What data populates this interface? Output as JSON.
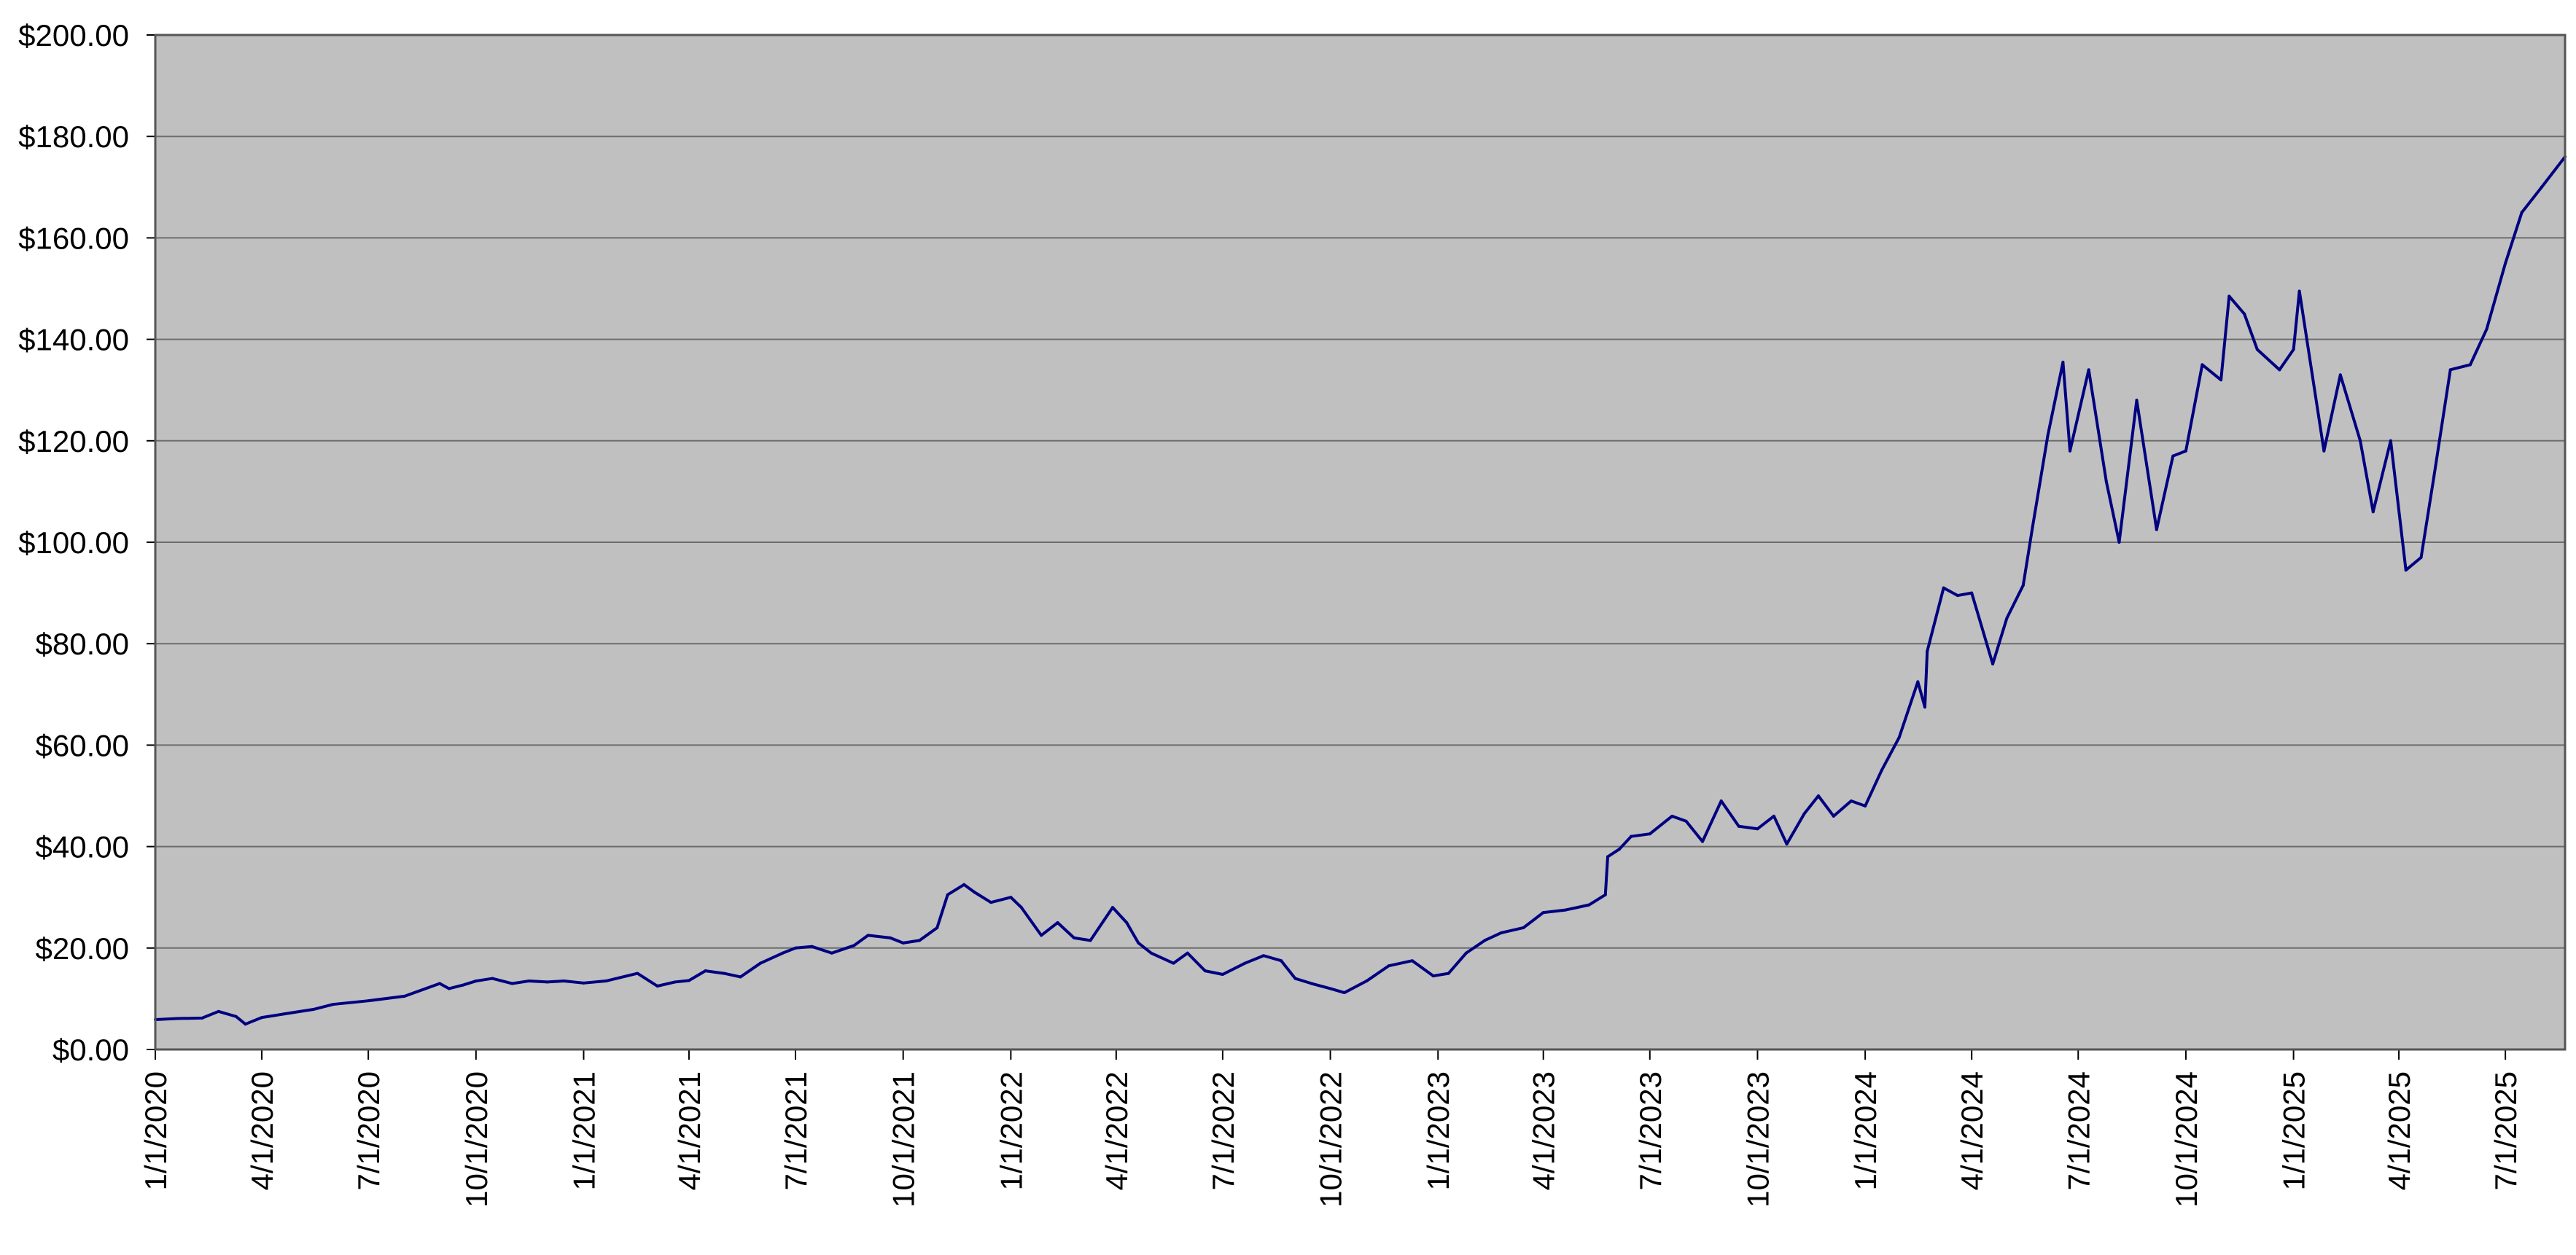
{
  "chart_data": {
    "type": "line",
    "title": "",
    "xlabel": "",
    "ylabel": "",
    "ylim": [
      0,
      200
    ],
    "xlim": [
      "2020-01-01",
      "2025-08-21"
    ],
    "grid": true,
    "legend": "none",
    "y_ticks": [
      {
        "value": 0,
        "label": "$0.00"
      },
      {
        "value": 20,
        "label": "$20.00"
      },
      {
        "value": 40,
        "label": "$40.00"
      },
      {
        "value": 60,
        "label": "$60.00"
      },
      {
        "value": 80,
        "label": "$80.00"
      },
      {
        "value": 100,
        "label": "$100.00"
      },
      {
        "value": 120,
        "label": "$120.00"
      },
      {
        "value": 140,
        "label": "$140.00"
      },
      {
        "value": 160,
        "label": "$160.00"
      },
      {
        "value": 180,
        "label": "$180.00"
      },
      {
        "value": 200,
        "label": "$200.00"
      }
    ],
    "x_ticks": [
      {
        "date": "2020-01-01",
        "label": "1/1/2020"
      },
      {
        "date": "2020-04-01",
        "label": "4/1/2020"
      },
      {
        "date": "2020-07-01",
        "label": "7/1/2020"
      },
      {
        "date": "2020-10-01",
        "label": "10/1/2020"
      },
      {
        "date": "2021-01-01",
        "label": "1/1/2021"
      },
      {
        "date": "2021-04-01",
        "label": "4/1/2021"
      },
      {
        "date": "2021-07-01",
        "label": "7/1/2021"
      },
      {
        "date": "2021-10-01",
        "label": "10/1/2021"
      },
      {
        "date": "2022-01-01",
        "label": "1/1/2022"
      },
      {
        "date": "2022-04-01",
        "label": "4/1/2022"
      },
      {
        "date": "2022-07-01",
        "label": "7/1/2022"
      },
      {
        "date": "2022-10-01",
        "label": "10/1/2022"
      },
      {
        "date": "2023-01-01",
        "label": "1/1/2023"
      },
      {
        "date": "2023-04-01",
        "label": "4/1/2023"
      },
      {
        "date": "2023-07-01",
        "label": "7/1/2023"
      },
      {
        "date": "2023-10-01",
        "label": "10/1/2023"
      },
      {
        "date": "2024-01-01",
        "label": "1/1/2024"
      },
      {
        "date": "2024-04-01",
        "label": "4/1/2024"
      },
      {
        "date": "2024-07-01",
        "label": "7/1/2024"
      },
      {
        "date": "2024-10-01",
        "label": "10/1/2024"
      },
      {
        "date": "2025-01-01",
        "label": "1/1/2025"
      },
      {
        "date": "2025-04-01",
        "label": "4/1/2025"
      },
      {
        "date": "2025-07-01",
        "label": "7/1/2025"
      }
    ],
    "series": [
      {
        "color": "#000080",
        "points": [
          [
            "2020-01-01",
            5.9
          ],
          [
            "2020-01-20",
            6.1
          ],
          [
            "2020-02-10",
            6.2
          ],
          [
            "2020-02-24",
            7.5
          ],
          [
            "2020-03-10",
            6.5
          ],
          [
            "2020-03-18",
            5.0
          ],
          [
            "2020-04-01",
            6.3
          ],
          [
            "2020-04-20",
            7.0
          ],
          [
            "2020-05-15",
            7.9
          ],
          [
            "2020-06-01",
            8.9
          ],
          [
            "2020-07-01",
            9.6
          ],
          [
            "2020-08-01",
            10.5
          ],
          [
            "2020-08-31",
            13.0
          ],
          [
            "2020-09-08",
            12.0
          ],
          [
            "2020-09-20",
            12.7
          ],
          [
            "2020-10-01",
            13.5
          ],
          [
            "2020-10-15",
            14.0
          ],
          [
            "2020-11-01",
            13.0
          ],
          [
            "2020-11-15",
            13.5
          ],
          [
            "2020-12-01",
            13.3
          ],
          [
            "2020-12-15",
            13.5
          ],
          [
            "2021-01-01",
            13.1
          ],
          [
            "2021-01-20",
            13.5
          ],
          [
            "2021-02-16",
            15.0
          ],
          [
            "2021-03-05",
            12.5
          ],
          [
            "2021-03-20",
            13.3
          ],
          [
            "2021-04-01",
            13.6
          ],
          [
            "2021-04-15",
            15.5
          ],
          [
            "2021-05-01",
            15.0
          ],
          [
            "2021-05-15",
            14.3
          ],
          [
            "2021-06-01",
            17.0
          ],
          [
            "2021-06-20",
            19.0
          ],
          [
            "2021-07-01",
            20.0
          ],
          [
            "2021-07-15",
            20.3
          ],
          [
            "2021-08-01",
            19.0
          ],
          [
            "2021-08-20",
            20.5
          ],
          [
            "2021-09-01",
            22.5
          ],
          [
            "2021-09-20",
            22.0
          ],
          [
            "2021-10-01",
            21.0
          ],
          [
            "2021-10-15",
            21.5
          ],
          [
            "2021-10-30",
            24.0
          ],
          [
            "2021-11-08",
            30.5
          ],
          [
            "2021-11-22",
            32.5
          ],
          [
            "2021-12-01",
            31.0
          ],
          [
            "2021-12-15",
            29.0
          ],
          [
            "2022-01-01",
            30.0
          ],
          [
            "2022-01-10",
            28.0
          ],
          [
            "2022-01-27",
            22.5
          ],
          [
            "2022-02-10",
            25.0
          ],
          [
            "2022-02-24",
            22.0
          ],
          [
            "2022-03-10",
            21.5
          ],
          [
            "2022-03-29",
            28.0
          ],
          [
            "2022-04-10",
            25.0
          ],
          [
            "2022-04-20",
            21.0
          ],
          [
            "2022-05-01",
            19.0
          ],
          [
            "2022-05-20",
            17.0
          ],
          [
            "2022-06-01",
            19.0
          ],
          [
            "2022-06-16",
            15.5
          ],
          [
            "2022-07-01",
            14.8
          ],
          [
            "2022-07-20",
            17.0
          ],
          [
            "2022-08-05",
            18.5
          ],
          [
            "2022-08-20",
            17.5
          ],
          [
            "2022-09-01",
            14.0
          ],
          [
            "2022-09-15",
            13.0
          ],
          [
            "2022-10-01",
            12.0
          ],
          [
            "2022-10-13",
            11.2
          ],
          [
            "2022-11-01",
            13.5
          ],
          [
            "2022-11-20",
            16.5
          ],
          [
            "2022-12-10",
            17.5
          ],
          [
            "2022-12-28",
            14.5
          ],
          [
            "2023-01-10",
            15.0
          ],
          [
            "2023-01-25",
            19.0
          ],
          [
            "2023-02-10",
            21.5
          ],
          [
            "2023-02-24",
            23.0
          ],
          [
            "2023-03-15",
            24.0
          ],
          [
            "2023-04-01",
            27.0
          ],
          [
            "2023-04-20",
            27.5
          ],
          [
            "2023-05-10",
            28.5
          ],
          [
            "2023-05-24",
            30.5
          ],
          [
            "2023-05-26",
            38.0
          ],
          [
            "2023-06-05",
            39.5
          ],
          [
            "2023-06-15",
            42.0
          ],
          [
            "2023-07-01",
            42.5
          ],
          [
            "2023-07-20",
            46.0
          ],
          [
            "2023-08-01",
            45.0
          ],
          [
            "2023-08-15",
            41.0
          ],
          [
            "2023-08-31",
            49.0
          ],
          [
            "2023-09-15",
            44.0
          ],
          [
            "2023-10-01",
            43.5
          ],
          [
            "2023-10-15",
            46.0
          ],
          [
            "2023-10-26",
            40.5
          ],
          [
            "2023-11-10",
            46.5
          ],
          [
            "2023-11-22",
            50.0
          ],
          [
            "2023-12-05",
            46.0
          ],
          [
            "2023-12-20",
            49.0
          ],
          [
            "2024-01-01",
            48.0
          ],
          [
            "2024-01-15",
            55.0
          ],
          [
            "2024-01-30",
            61.5
          ],
          [
            "2024-02-15",
            72.5
          ],
          [
            "2024-02-21",
            67.5
          ],
          [
            "2024-02-23",
            78.5
          ],
          [
            "2024-03-08",
            91.0
          ],
          [
            "2024-03-20",
            89.5
          ],
          [
            "2024-04-01",
            90.0
          ],
          [
            "2024-04-19",
            76.0
          ],
          [
            "2024-05-01",
            85.0
          ],
          [
            "2024-05-15",
            91.5
          ],
          [
            "2024-05-23",
            103.0
          ],
          [
            "2024-06-05",
            121.0
          ],
          [
            "2024-06-18",
            135.5
          ],
          [
            "2024-06-24",
            118.0
          ],
          [
            "2024-07-10",
            134.0
          ],
          [
            "2024-07-25",
            112.0
          ],
          [
            "2024-08-05",
            100.0
          ],
          [
            "2024-08-20",
            128.0
          ],
          [
            "2024-09-06",
            102.5
          ],
          [
            "2024-09-20",
            117.0
          ],
          [
            "2024-10-01",
            118.0
          ],
          [
            "2024-10-15",
            135.0
          ],
          [
            "2024-10-31",
            132.0
          ],
          [
            "2024-11-07",
            148.5
          ],
          [
            "2024-11-20",
            145.0
          ],
          [
            "2024-12-01",
            138.0
          ],
          [
            "2024-12-20",
            134.0
          ],
          [
            "2025-01-01",
            138.0
          ],
          [
            "2025-01-06",
            149.5
          ],
          [
            "2025-01-27",
            118.0
          ],
          [
            "2025-02-10",
            133.0
          ],
          [
            "2025-02-27",
            120.0
          ],
          [
            "2025-03-10",
            106.0
          ],
          [
            "2025-03-25",
            120.0
          ],
          [
            "2025-04-07",
            94.5
          ],
          [
            "2025-04-20",
            97.0
          ],
          [
            "2025-05-01",
            113.0
          ],
          [
            "2025-05-15",
            134.0
          ],
          [
            "2025-06-01",
            135.0
          ],
          [
            "2025-06-15",
            142.0
          ],
          [
            "2025-07-01",
            155.0
          ],
          [
            "2025-07-15",
            165.0
          ],
          [
            "2025-08-01",
            170.0
          ],
          [
            "2025-08-21",
            176.0
          ]
        ]
      }
    ]
  }
}
